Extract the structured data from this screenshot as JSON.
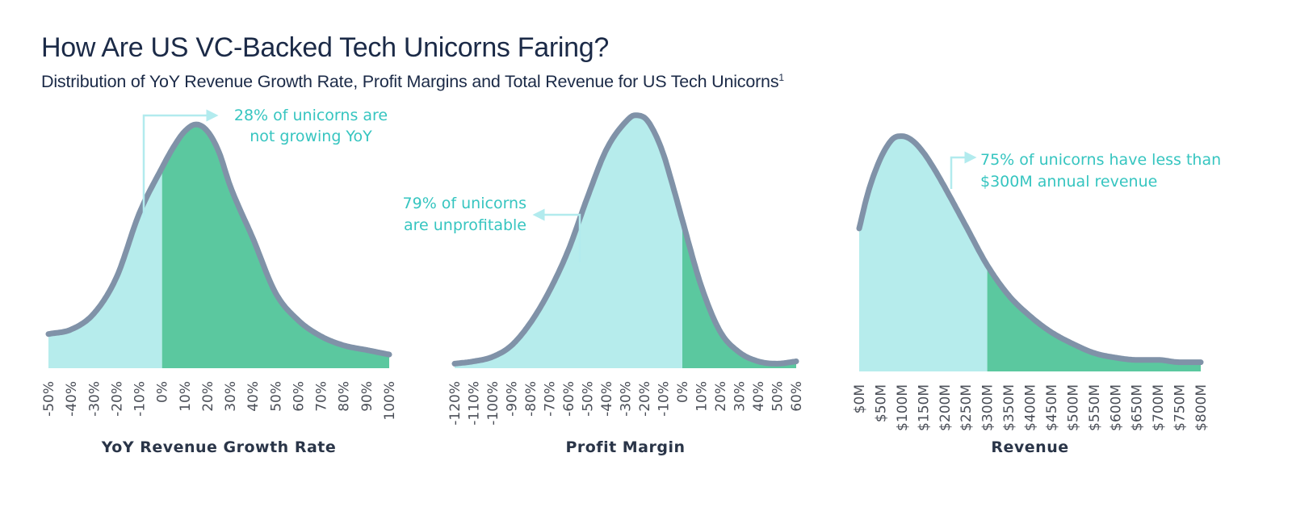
{
  "header": {
    "title": "How Are US VC-Backed Tech Unicorns Faring?",
    "subtitle": "Distribution of YoY Revenue Growth Rate, Profit Margins and Total Revenue for US Tech Unicorns",
    "subtitle_footnote": "1"
  },
  "colors": {
    "light_fill": "#b6ecec",
    "dark_fill": "#5bc89f",
    "curve": "#8092a8",
    "annotation_text": "#36c5c0",
    "annotation_arrow": "#b2ebee",
    "tick_text": "#4a4e57",
    "axis_title": "#2a3548",
    "title_text": "#1b2a47"
  },
  "chart_data": [
    {
      "type": "area",
      "xlabel": "YoY Revenue Growth Rate",
      "ylabel": "",
      "categories": [
        "-50%",
        "-40%",
        "-30%",
        "-20%",
        "-10%",
        "0%",
        "10%",
        "20%",
        "30%",
        "40%",
        "50%",
        "60%",
        "70%",
        "80%",
        "90%",
        "100%"
      ],
      "x": [
        -50,
        -40,
        -30,
        -20,
        -10,
        0,
        5,
        10,
        15,
        20,
        25,
        30,
        40,
        50,
        60,
        70,
        80,
        90,
        100
      ],
      "y": [
        15,
        17,
        24,
        40,
        68,
        88,
        97,
        104,
        107,
        104,
        95,
        80,
        57,
        33,
        21,
        14,
        10,
        8,
        6
      ],
      "ylim": [
        0,
        112
      ],
      "split_x": 0,
      "fill_left": "light",
      "fill_right": "dark",
      "annotation": {
        "lines": [
          "28% of unicorns are",
          "not growing YoY"
        ],
        "arrow": "right"
      }
    },
    {
      "type": "area",
      "xlabel": "Profit Margin",
      "ylabel": "",
      "categories": [
        "-120%",
        "-110%",
        "-100%",
        "-90%",
        "-80%",
        "-70%",
        "-60%",
        "-50%",
        "-40%",
        "-30%",
        "-20%",
        "-10%",
        "0%",
        "10%",
        "20%",
        "30%",
        "40%",
        "50%",
        "60%"
      ],
      "x": [
        -120,
        -110,
        -100,
        -90,
        -80,
        -70,
        -60,
        -50,
        -40,
        -30,
        -25,
        -20,
        -15,
        -10,
        -5,
        0,
        10,
        20,
        30,
        40,
        50,
        60
      ],
      "y": [
        2,
        3,
        5,
        10,
        20,
        34,
        52,
        75,
        96,
        108,
        111,
        110,
        104,
        94,
        80,
        65,
        36,
        16,
        7,
        3,
        2,
        3
      ],
      "ylim": [
        0,
        112
      ],
      "split_x": 0,
      "fill_left": "light",
      "fill_right": "dark",
      "annotation": {
        "lines": [
          "79% of unicorns",
          "are unprofitable"
        ],
        "arrow": "left"
      }
    },
    {
      "type": "area",
      "xlabel": "Revenue",
      "ylabel": "",
      "categories": [
        "$0M",
        "$50M",
        "$100M",
        "$150M",
        "$200M",
        "$250M",
        "$300M",
        "$350M",
        "$400M",
        "$450M",
        "$500M",
        "$550M",
        "$600M",
        "$650M",
        "$700M",
        "$750M",
        "$800M"
      ],
      "x": [
        0,
        20,
        40,
        60,
        80,
        100,
        125,
        150,
        175,
        200,
        250,
        300,
        350,
        400,
        450,
        500,
        550,
        600,
        650,
        700,
        750,
        800
      ],
      "y": [
        62,
        77,
        88,
        96,
        101,
        102,
        100,
        95,
        88,
        80,
        63,
        46,
        33,
        24,
        17,
        12,
        8,
        6,
        5,
        5,
        4,
        4
      ],
      "ylim": [
        0,
        112
      ],
      "split_x": 300,
      "fill_left": "light",
      "fill_right": "dark",
      "annotation": {
        "lines": [
          "75% of unicorns have less than",
          "$300M annual revenue"
        ],
        "arrow": "right"
      }
    }
  ]
}
